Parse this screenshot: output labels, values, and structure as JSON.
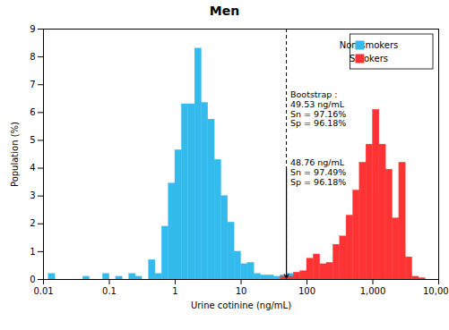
{
  "chart_data": {
    "type": "bar",
    "title": "Men",
    "xlabel": "Urine cotinine (ng/mL)",
    "ylabel": "Population (%)",
    "log": "x",
    "grid": false,
    "legend": "upper right",
    "xlim": [
      0.01,
      10000
    ],
    "xticks": [
      0.01,
      0.1,
      1,
      10,
      100,
      {
        "value": 1000,
        "label": "1,000"
      },
      {
        "value": 10000,
        "label": "10,000"
      }
    ],
    "ylim": [
      0,
      9
    ],
    "yticks": [
      0,
      1,
      2,
      3,
      4,
      5,
      6,
      7,
      8,
      9
    ],
    "cutoff": 48.76,
    "annotations": [
      "48.76 ng/mL\nSn = 97.49%\nSp = 96.18%",
      "Bootstrap :\n49.53 ng/mL\nSn = 97.16%\nSp = 96.18%"
    ],
    "series": [
      {
        "name": "Non-smokers",
        "color": "#33BBEE",
        "x": [
          0.012,
          0.016,
          0.02,
          0.025,
          0.032,
          0.04,
          0.05,
          0.063,
          0.08,
          0.1,
          0.126,
          0.158,
          0.2,
          0.25,
          0.316,
          0.398,
          0.5,
          0.631,
          0.794,
          1.0,
          1.259,
          1.585,
          2.0,
          2.512,
          3.162,
          3.981,
          5.012,
          6.31,
          7.943,
          10.0,
          12.59,
          15.85,
          19.95,
          25.12,
          31.62,
          39.81,
          50.12,
          63.1,
          79.43
        ],
        "values": [
          0.2,
          0.0,
          0.0,
          0.0,
          0.0,
          0.1,
          0.0,
          0.0,
          0.2,
          0.0,
          0.1,
          0.0,
          0.2,
          0.1,
          0.0,
          0.7,
          0.2,
          1.9,
          3.45,
          4.65,
          6.3,
          6.3,
          8.3,
          6.35,
          5.75,
          4.3,
          3.0,
          2.05,
          1.0,
          0.55,
          0.6,
          0.2,
          0.15,
          0.15,
          0.1,
          0.15,
          0.2,
          0.15,
          0.05
        ]
      },
      {
        "name": "Smokers",
        "color": "#FF3333",
        "x": [
          39.81,
          50.12,
          63.1,
          79.43,
          100.0,
          125.9,
          158.5,
          199.5,
          251.2,
          316.2,
          398.1,
          501.2,
          631.0,
          794.3,
          1000.0,
          1259.0,
          1585.0,
          1995.0,
          2512.0,
          3162.0,
          3981.0,
          5012.0
        ],
        "values": [
          0.1,
          0.1,
          0.25,
          0.3,
          0.75,
          0.9,
          0.55,
          0.6,
          1.25,
          1.55,
          2.3,
          3.2,
          4.2,
          4.85,
          6.1,
          4.85,
          3.95,
          2.2,
          4.2,
          0.8,
          0.1,
          0.05
        ]
      }
    ]
  }
}
